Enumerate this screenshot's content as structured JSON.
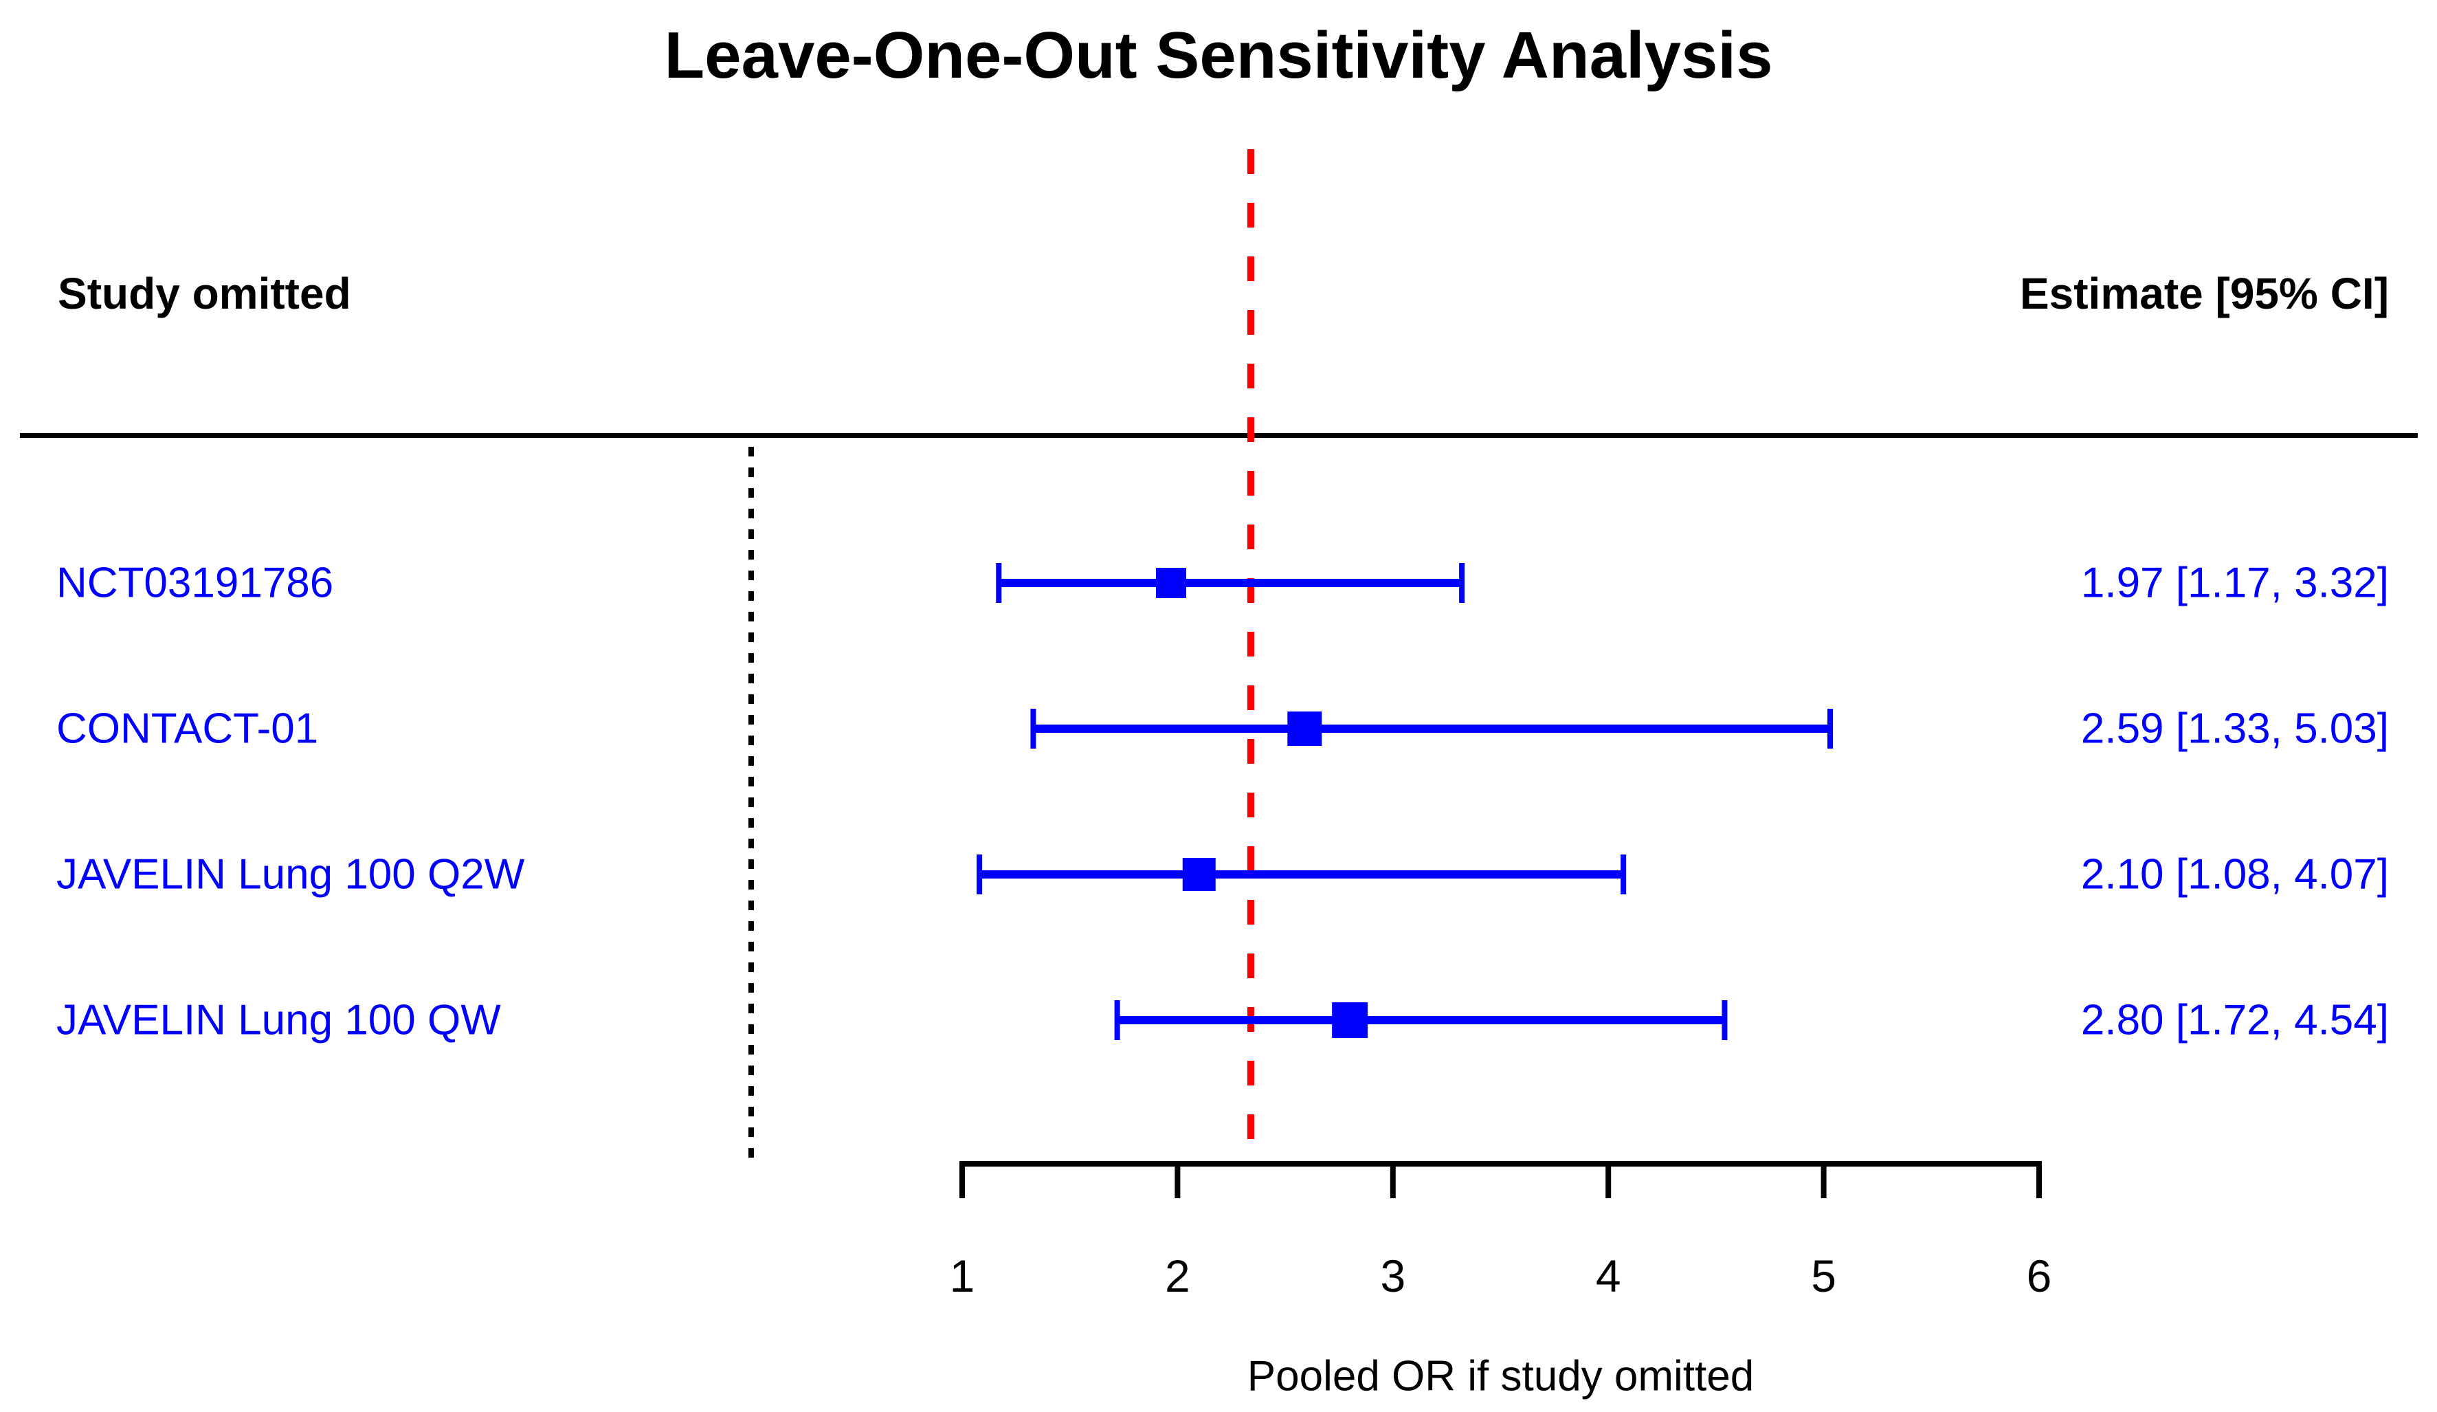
{
  "chart_data": {
    "type": "forest",
    "title": "Leave-One-Out Sensitivity Analysis",
    "left_header": "Study omitted",
    "right_header": "Estimate [95% CI]",
    "xlabel": "Pooled OR if study omitted",
    "xlim": [
      1,
      6
    ],
    "x_ticks": [
      1,
      2,
      3,
      4,
      5,
      6
    ],
    "reference_line_value": 2.34,
    "rows": [
      {
        "label": "NCT03191786",
        "estimate": 1.97,
        "ci_lower": 1.17,
        "ci_upper": 3.32,
        "estimate_text": "1.97 [1.17, 3.32]",
        "marker_size": 44
      },
      {
        "label": "CONTACT-01",
        "estimate": 2.59,
        "ci_lower": 1.33,
        "ci_upper": 5.03,
        "estimate_text": "2.59 [1.33, 5.03]",
        "marker_size": 50
      },
      {
        "label": "JAVELIN Lung 100 Q2W",
        "estimate": 2.1,
        "ci_lower": 1.08,
        "ci_upper": 4.07,
        "estimate_text": "2.10 [1.08, 4.07]",
        "marker_size": 48
      },
      {
        "label": "JAVELIN Lung 100 QW",
        "estimate": 2.8,
        "ci_lower": 1.72,
        "ci_upper": 4.54,
        "estimate_text": "2.80 [1.72, 4.54]",
        "marker_size": 52
      }
    ],
    "colors": {
      "marker": "#0000ff",
      "ci_line": "#0000ff",
      "row_text": "#0000ff",
      "reference_line": "#ff0000",
      "boundary_line": "#000000",
      "axis": "#000000",
      "header_text": "#000000"
    },
    "legend": "none",
    "grid": "off"
  }
}
